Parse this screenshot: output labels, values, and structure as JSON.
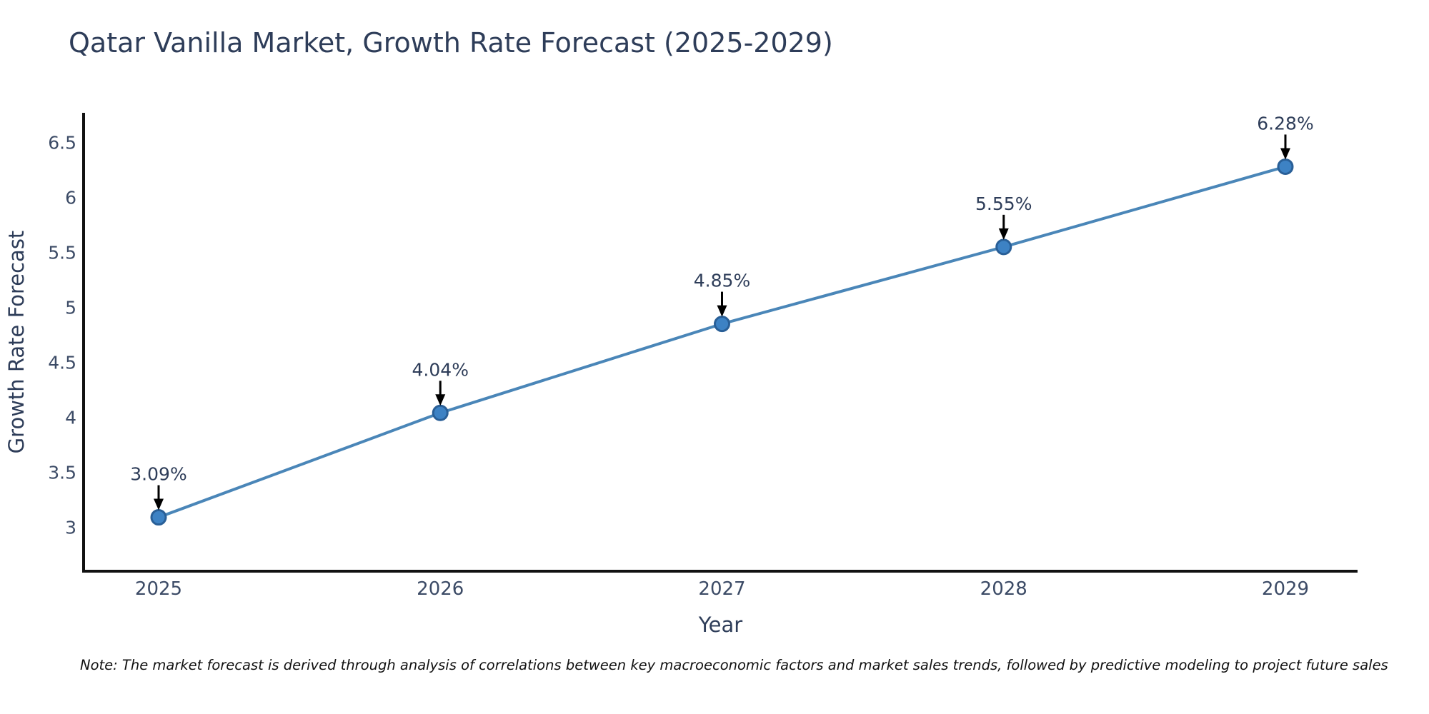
{
  "title": "Qatar Vanilla Market, Growth Rate Forecast (2025-2029)",
  "note": "Note: The market forecast is derived through analysis of correlations between key macroeconomic factors and market sales trends, followed by predictive modeling to project future sales",
  "chart_data": {
    "type": "line",
    "title": "Qatar Vanilla Market, Growth Rate Forecast (2025-2029)",
    "xlabel": "Year",
    "ylabel": "Growth Rate Forecast",
    "categories": [
      "2025",
      "2026",
      "2027",
      "2028",
      "2029"
    ],
    "series": [
      {
        "name": "Growth Rate Forecast",
        "values": [
          3.09,
          4.04,
          4.85,
          5.55,
          6.28
        ]
      }
    ],
    "point_labels": [
      "3.09%",
      "4.04%",
      "4.85%",
      "5.55%",
      "6.28%"
    ],
    "yticks": [
      3,
      3.5,
      4,
      4.5,
      5,
      5.5,
      6,
      6.5
    ],
    "ytick_labels": [
      "3",
      "3.5",
      "4",
      "4.5",
      "5",
      "5.5",
      "6",
      "6.5"
    ],
    "ylim": [
      2.6,
      6.77
    ],
    "grid": false,
    "legend_position": "none",
    "colors": {
      "line": "#4a86b8",
      "marker_fill": "#3d82c4",
      "marker_edge": "#295f97",
      "axis_spine": "#111111",
      "title_text": "#2e3d59",
      "tick_text": "#3c4b66",
      "annotation_text": "#2e3d59",
      "arrow": "#000000",
      "note_text": "#111111"
    }
  }
}
